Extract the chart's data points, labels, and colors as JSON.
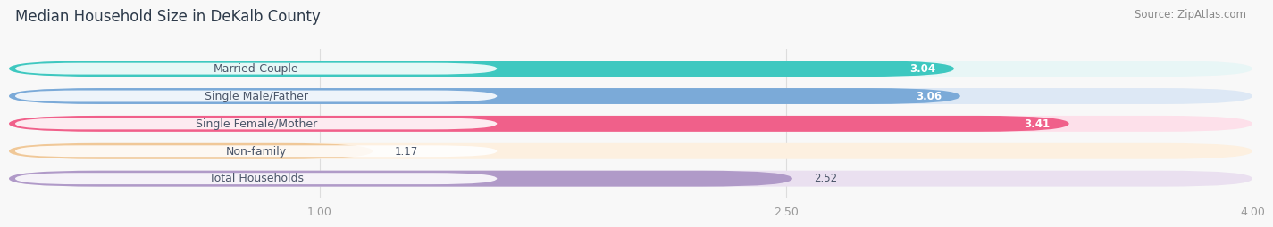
{
  "title": "Median Household Size in DeKalb County",
  "source": "Source: ZipAtlas.com",
  "categories": [
    "Married-Couple",
    "Single Male/Father",
    "Single Female/Mother",
    "Non-family",
    "Total Households"
  ],
  "values": [
    3.04,
    3.06,
    3.41,
    1.17,
    2.52
  ],
  "bar_colors": [
    "#3ec8c0",
    "#7baad8",
    "#f0608a",
    "#f0c898",
    "#b09ac8"
  ],
  "bar_bg_colors": [
    "#e8f6f6",
    "#dde8f5",
    "#fde0ea",
    "#fdf0e0",
    "#eae0f0"
  ],
  "dot_colors": [
    "#3ec8c0",
    "#7baad8",
    "#f0608a",
    "#f0c898",
    "#b09ac8"
  ],
  "value_labels": [
    "3.04",
    "3.06",
    "3.41",
    "1.17",
    "2.52"
  ],
  "value_inside": [
    true,
    true,
    true,
    false,
    false
  ],
  "xlim_start": 0.0,
  "xlim_end": 4.0,
  "xticks": [
    1.0,
    2.5,
    4.0
  ],
  "xticklabels": [
    "1.00",
    "2.50",
    "4.00"
  ],
  "bar_height": 0.58,
  "bg_color": "#f8f8f8",
  "plot_bg": "#f8f8f8",
  "title_fontsize": 12,
  "label_fontsize": 9,
  "value_fontsize": 8.5,
  "tick_fontsize": 9,
  "source_fontsize": 8.5,
  "label_text_color": "#4a5568",
  "tick_color": "#999999",
  "grid_color": "#dddddd"
}
